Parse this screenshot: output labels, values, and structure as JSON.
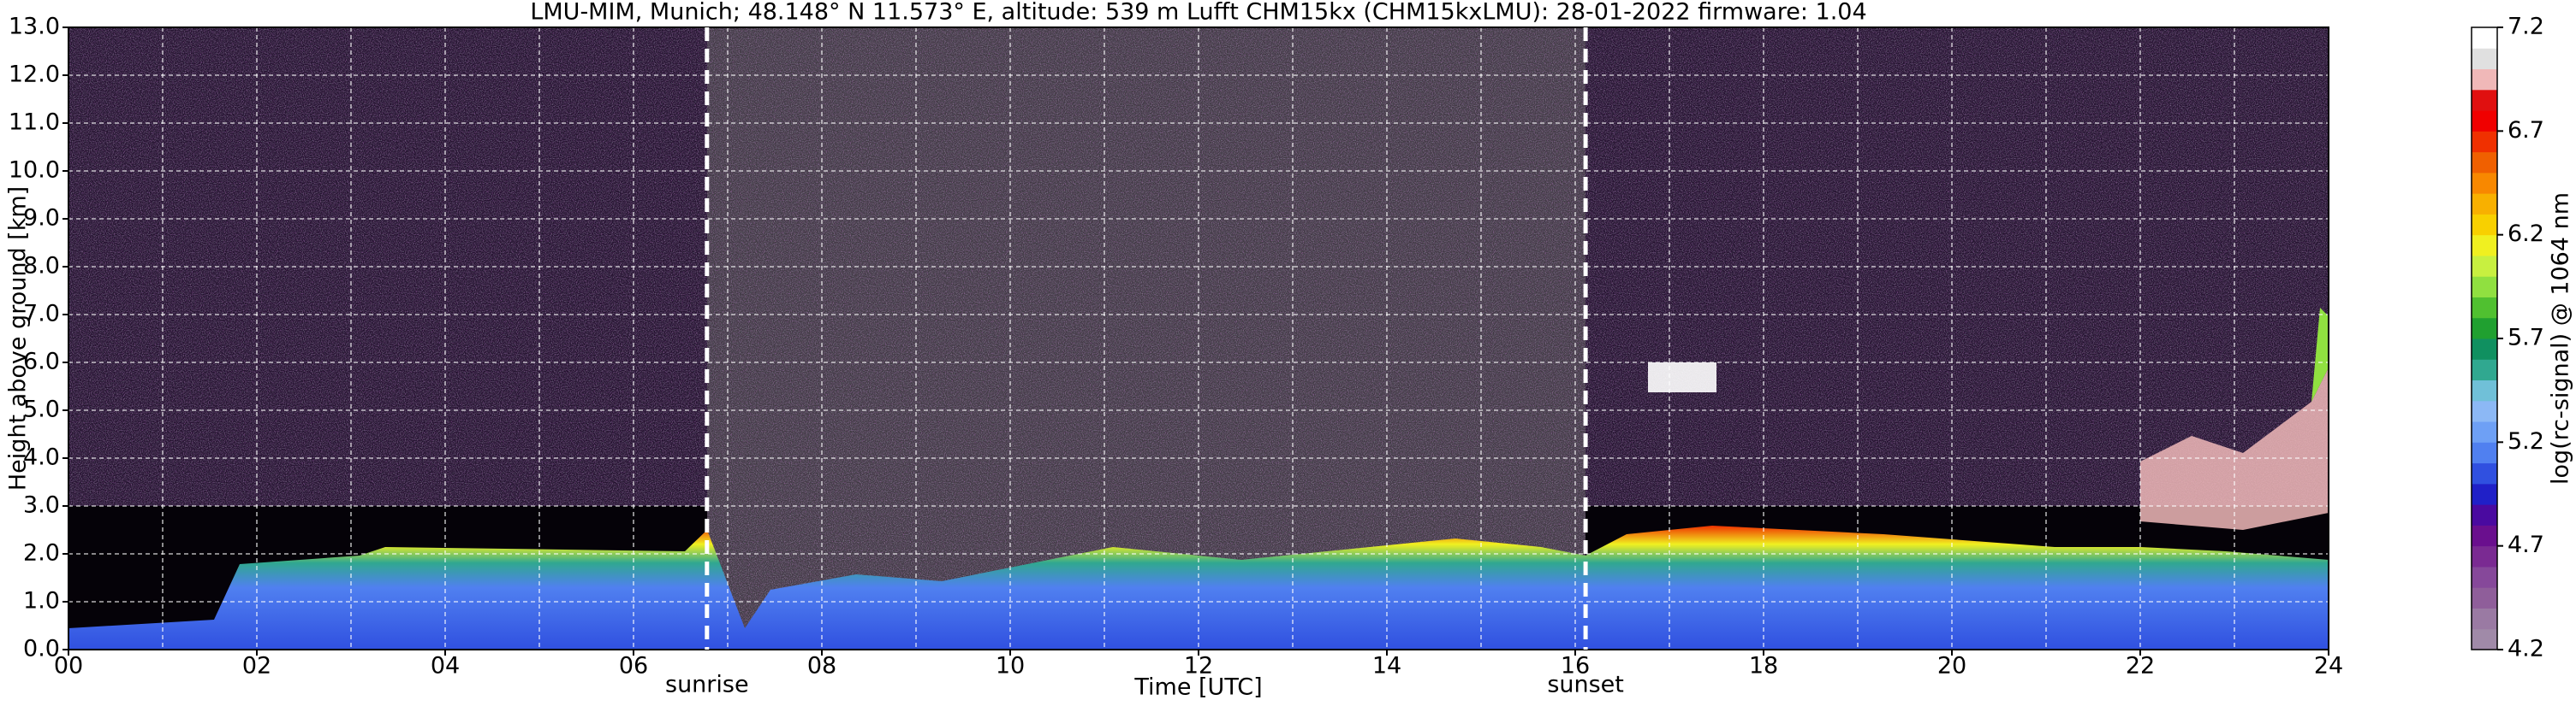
{
  "chart_data": {
    "type": "heatmap",
    "title": "LMU-MIM, Munich; 48.148° N 11.573° E, altitude: 539 m    Lufft CHM15kx (CHM15kxLMU): 28-01-2022    firmware: 1.04",
    "x_label": "Time [UTC]",
    "y_label": "Height above ground [km]",
    "xlim": [
      0,
      24
    ],
    "xticks": [
      {
        "value": 0,
        "label": "00"
      },
      {
        "value": 2,
        "label": "02"
      },
      {
        "value": 4,
        "label": "04"
      },
      {
        "value": 6,
        "label": "06"
      },
      {
        "value": 8,
        "label": "08"
      },
      {
        "value": 10,
        "label": "10"
      },
      {
        "value": 12,
        "label": "12"
      },
      {
        "value": 14,
        "label": "14"
      },
      {
        "value": 16,
        "label": "16"
      },
      {
        "value": 18,
        "label": "18"
      },
      {
        "value": 20,
        "label": "20"
      },
      {
        "value": 22,
        "label": "22"
      },
      {
        "value": 24,
        "label": "24"
      }
    ],
    "x_minor_ticks": [
      1,
      3,
      5,
      7,
      9,
      11,
      13,
      15,
      17,
      19,
      21,
      23
    ],
    "ylim": [
      0,
      13
    ],
    "yticks": [
      {
        "value": 0,
        "label": "0.0"
      },
      {
        "value": 1,
        "label": "1.0"
      },
      {
        "value": 2,
        "label": "2.0"
      },
      {
        "value": 3,
        "label": "3.0"
      },
      {
        "value": 4,
        "label": "4.0"
      },
      {
        "value": 5,
        "label": "5.0"
      },
      {
        "value": 6,
        "label": "6.0"
      },
      {
        "value": 7,
        "label": "7.0"
      },
      {
        "value": 8,
        "label": "8.0"
      },
      {
        "value": 9,
        "label": "9.0"
      },
      {
        "value": 10,
        "label": "10.0"
      },
      {
        "value": 11,
        "label": "11.0"
      },
      {
        "value": 12,
        "label": "12.0"
      },
      {
        "value": 13,
        "label": "13.0"
      }
    ],
    "grid": true,
    "annotations": [
      {
        "x": 6.78,
        "label": "sunrise"
      },
      {
        "x": 16.11,
        "label": "sunset"
      }
    ],
    "colorbar": {
      "label": "log(rc-signal) @ 1064 nm",
      "lim": [
        4.2,
        7.2
      ],
      "ticks": [
        4.2,
        4.7,
        5.2,
        5.7,
        6.2,
        6.7,
        7.2
      ],
      "colors": [
        "#a08aa8",
        "#9a7aa3",
        "#8f5e9a",
        "#86489a",
        "#7a2a92",
        "#6a0f8e",
        "#4a0aa0",
        "#2020c8",
        "#3050e0",
        "#5080f0",
        "#6ea0f5",
        "#8cb8f5",
        "#70c0d8",
        "#30a890",
        "#109060",
        "#20a030",
        "#50c030",
        "#90e040",
        "#c8f040",
        "#f0f020",
        "#f8d000",
        "#f8b000",
        "#f88800",
        "#f06000",
        "#f03000",
        "#f00000",
        "#e01010",
        "#f0b8b8",
        "#e0e0e0",
        "#ffffff"
      ]
    }
  }
}
